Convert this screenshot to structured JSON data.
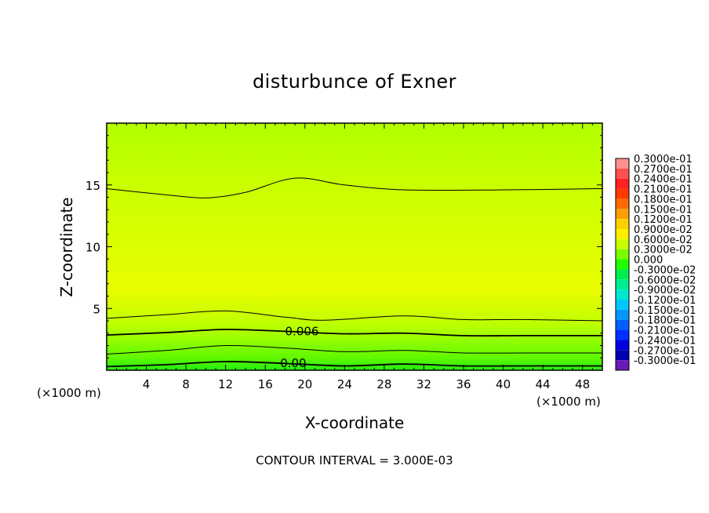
{
  "chart_data": {
    "type": "heatmap",
    "title": "disturbunce of Exner",
    "xlabel": "X-coordinate",
    "ylabel": "Z-coordinate",
    "x_unit": "(×1000 m)",
    "z_unit": "(×1000 m)",
    "xlim": [
      0,
      50
    ],
    "ylim": [
      0,
      20
    ],
    "x_ticks": [
      4,
      8,
      12,
      16,
      20,
      24,
      28,
      32,
      36,
      40,
      44,
      48
    ],
    "y_ticks": [
      5,
      10,
      15
    ],
    "footer": "CONTOUR INTERVAL = 3.000E-03",
    "colorbar": {
      "labels": [
        "0.3000e-01",
        "0.2700e-01",
        "0.2400e-01",
        "0.2100e-01",
        "0.1800e-01",
        "0.1500e-01",
        "0.1200e-01",
        "0.9000e-02",
        "0.6000e-02",
        "0.3000e-02",
        "0.000",
        "-0.3000e-02",
        "-0.6000e-02",
        "-0.9000e-02",
        "-0.1200e-01",
        "-0.1500e-01",
        "-0.1800e-01",
        "-0.2100e-01",
        "-0.2400e-01",
        "-0.2700e-01",
        "-0.3000e-01"
      ],
      "colors": [
        "#ff9090",
        "#ff5050",
        "#ff2020",
        "#ff3a00",
        "#ff6a00",
        "#ff9e00",
        "#ffd000",
        "#fff000",
        "#c8ff00",
        "#78ff00",
        "#20ff00",
        "#00ee50",
        "#00ee90",
        "#00e8d0",
        "#00c8ff",
        "#0098ff",
        "#0060ff",
        "#0030ff",
        "#0000e0",
        "#0000b0",
        "#6a1ab8"
      ]
    },
    "field_bands": [
      {
        "z": 0.0,
        "level": 0.0
      },
      {
        "z": 1.0,
        "level": 0.003
      },
      {
        "z": 2.0,
        "level": 0.0045
      },
      {
        "z": 3.0,
        "level": 0.006
      },
      {
        "z": 4.2,
        "level": 0.0075
      },
      {
        "z": 6.5,
        "level": 0.0092
      },
      {
        "z": 10.0,
        "level": 0.0085
      },
      {
        "z": 14.5,
        "level": 0.0077
      },
      {
        "z": 20.0,
        "level": 0.0065
      }
    ],
    "contours": [
      {
        "level": 0.0,
        "label": "0.00",
        "label_x": 17.5,
        "z": [
          [
            0,
            0.3
          ],
          [
            6,
            0.45
          ],
          [
            12,
            0.7
          ],
          [
            18,
            0.55
          ],
          [
            24,
            0.35
          ],
          [
            30,
            0.5
          ],
          [
            36,
            0.35
          ],
          [
            42,
            0.35
          ],
          [
            50,
            0.35
          ]
        ]
      },
      {
        "level": 0.003,
        "label": "",
        "z": [
          [
            0,
            1.3
          ],
          [
            6,
            1.6
          ],
          [
            12,
            2.0
          ],
          [
            18,
            1.8
          ],
          [
            24,
            1.5
          ],
          [
            30,
            1.6
          ],
          [
            36,
            1.4
          ],
          [
            42,
            1.4
          ],
          [
            50,
            1.4
          ]
        ]
      },
      {
        "level": 0.006,
        "label": "0.006",
        "label_x": 18.0,
        "z": [
          [
            0,
            2.85
          ],
          [
            6,
            3.05
          ],
          [
            12,
            3.3
          ],
          [
            18,
            3.15
          ],
          [
            24,
            2.95
          ],
          [
            30,
            3.0
          ],
          [
            36,
            2.8
          ],
          [
            42,
            2.8
          ],
          [
            50,
            2.8
          ]
        ]
      },
      {
        "level": 0.009,
        "label": "",
        "z": [
          [
            0,
            4.2
          ],
          [
            6,
            4.5
          ],
          [
            12,
            4.8
          ],
          [
            18,
            4.3
          ],
          [
            22,
            4.05
          ],
          [
            30,
            4.4
          ],
          [
            36,
            4.1
          ],
          [
            42,
            4.1
          ],
          [
            50,
            4.0
          ]
        ]
      },
      {
        "level": 0.009,
        "label": "",
        "z": [
          [
            0,
            14.7
          ],
          [
            6,
            14.2
          ],
          [
            10,
            13.95
          ],
          [
            14,
            14.4
          ],
          [
            19,
            15.55
          ],
          [
            24,
            15.0
          ],
          [
            30,
            14.6
          ],
          [
            40,
            14.6
          ],
          [
            50,
            14.7
          ]
        ]
      }
    ]
  }
}
